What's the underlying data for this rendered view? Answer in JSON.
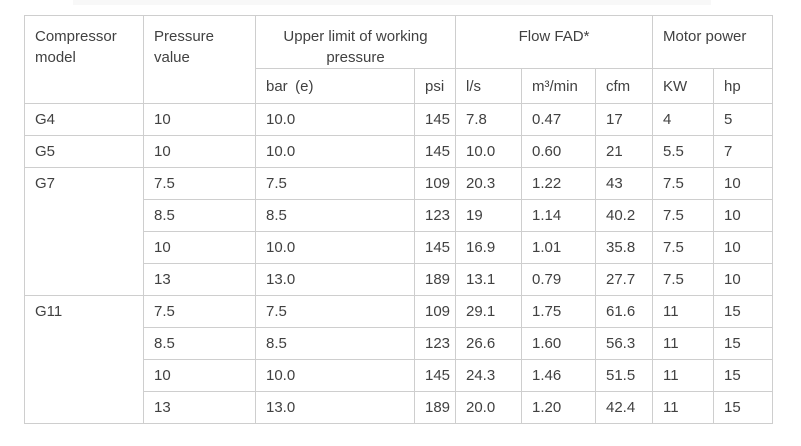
{
  "table": {
    "header": {
      "compressor_model": "Compressor model",
      "pressure_value": "Pressure value",
      "upper_limit": "Upper limit of working pressure",
      "flow_fad": "Flow FAD*",
      "motor_power": "Motor power",
      "units": [
        "bar (e)",
        "psi",
        "l/s",
        "m³/min",
        "cfm",
        "KW",
        "hp"
      ]
    },
    "groups": [
      {
        "model": "G4",
        "rows": [
          [
            "10",
            "10.0",
            "145",
            "7.8",
            "0.47",
            "17",
            "4",
            "5"
          ]
        ]
      },
      {
        "model": "G5",
        "rows": [
          [
            "10",
            "10.0",
            "145",
            "10.0",
            "0.60",
            "21",
            "5.5",
            "7"
          ]
        ]
      },
      {
        "model": "G7",
        "rows": [
          [
            "7.5",
            "7.5",
            "109",
            "20.3",
            "1.22",
            "43",
            "7.5",
            "10"
          ],
          [
            "8.5",
            "8.5",
            "123",
            "19",
            "1.14",
            "40.2",
            "7.5",
            "10"
          ],
          [
            "10",
            "10.0",
            "145",
            "16.9",
            "1.01",
            "35.8",
            "7.5",
            "10"
          ],
          [
            "13",
            "13.0",
            "189",
            "13.1",
            "0.79",
            "27.7",
            "7.5",
            "10"
          ]
        ]
      },
      {
        "model": "G11",
        "rows": [
          [
            "7.5",
            "7.5",
            "109",
            "29.1",
            "1.75",
            "61.6",
            "11",
            "15"
          ],
          [
            "8.5",
            "8.5",
            "123",
            "26.6",
            "1.60",
            "56.3",
            "11",
            "15"
          ],
          [
            "10",
            "10.0",
            "145",
            "24.3",
            "1.46",
            "51.5",
            "11",
            "15"
          ],
          [
            "13",
            "13.0",
            "189",
            "20.0",
            "1.20",
            "42.4",
            "11",
            "15"
          ]
        ]
      }
    ],
    "colors": {
      "text": "#414141",
      "border": "#cecece",
      "background": "#ffffff"
    }
  }
}
